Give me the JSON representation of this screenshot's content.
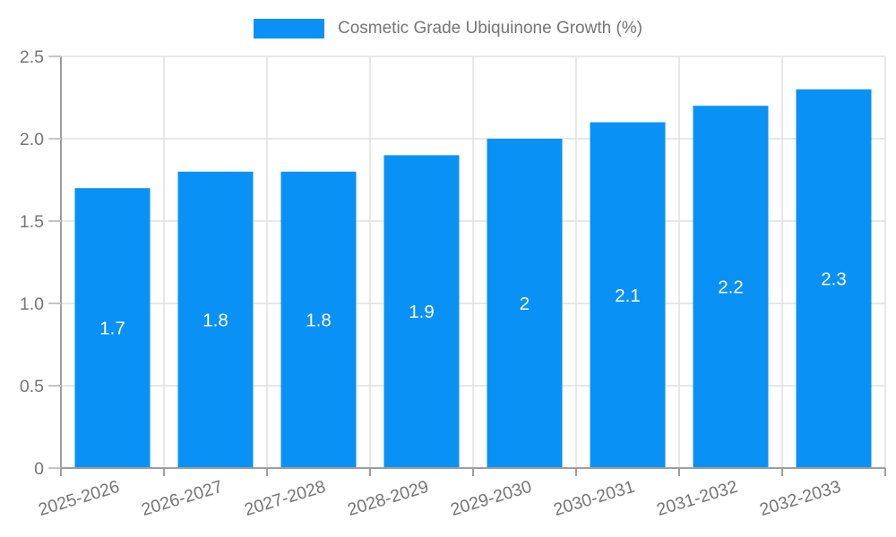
{
  "legend": {
    "label": "Cosmetic Grade Ubiquinone Growth (%)"
  },
  "colors": {
    "background": "#ffffff",
    "bar": "#0a91f5",
    "grid": "#e0e0e0",
    "axis": "#9e9e9e",
    "y_tick": "#c6c6c6",
    "x_tick": "#9e9e9e",
    "tick_text": "#757575",
    "legend_text": "#757575",
    "value_label": "#ffffff"
  },
  "chart_data": {
    "type": "bar",
    "title": "Cosmetic Grade Ubiquinone Growth (%)",
    "legend_position": "top",
    "grid": true,
    "xlabel": "",
    "ylabel": "",
    "categories": [
      "2025-2026",
      "2026-2027",
      "2027-2028",
      "2028-2029",
      "2029-2030",
      "2030-2031",
      "2031-2032",
      "2032-2033"
    ],
    "series": [
      {
        "name": "Cosmetic Grade Ubiquinone Growth (%)",
        "values": [
          1.7,
          1.8,
          1.8,
          1.9,
          2.0,
          2.1,
          2.2,
          2.3
        ],
        "bar_labels": [
          "1.7",
          "1.8",
          "1.8",
          "1.9",
          "2",
          "2.1",
          "2.2",
          "2.3"
        ]
      }
    ],
    "ylim": [
      0,
      2.5
    ],
    "yticks": {
      "values": [
        0,
        0.5,
        1.0,
        1.5,
        2.0,
        2.5
      ],
      "labels": [
        "0",
        "0.5",
        "1.0",
        "1.5",
        "2.0",
        "2.5"
      ]
    }
  }
}
